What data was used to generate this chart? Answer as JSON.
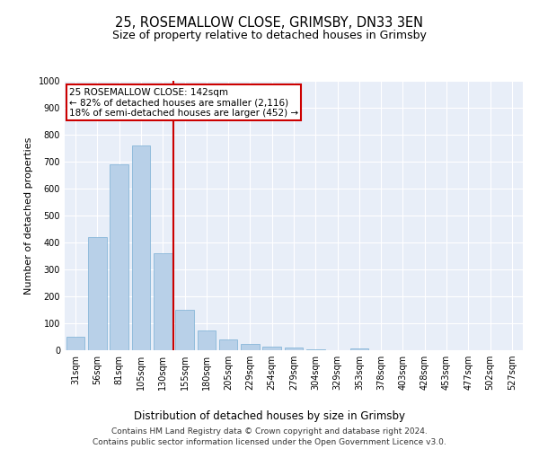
{
  "title": "25, ROSEMALLOW CLOSE, GRIMSBY, DN33 3EN",
  "subtitle": "Size of property relative to detached houses in Grimsby",
  "xlabel": "Distribution of detached houses by size in Grimsby",
  "ylabel": "Number of detached properties",
  "categories": [
    "31sqm",
    "56sqm",
    "81sqm",
    "105sqm",
    "130sqm",
    "155sqm",
    "180sqm",
    "205sqm",
    "229sqm",
    "254sqm",
    "279sqm",
    "304sqm",
    "329sqm",
    "353sqm",
    "378sqm",
    "403sqm",
    "428sqm",
    "453sqm",
    "477sqm",
    "502sqm",
    "527sqm"
  ],
  "values": [
    50,
    420,
    690,
    760,
    360,
    150,
    75,
    40,
    25,
    15,
    10,
    5,
    0,
    8,
    0,
    0,
    0,
    0,
    0,
    0,
    0
  ],
  "bar_color": "#b8d0e8",
  "bar_edge_color": "#7aafd4",
  "vline_color": "#cc0000",
  "annotation_text": "25 ROSEMALLOW CLOSE: 142sqm\n← 82% of detached houses are smaller (2,116)\n18% of semi-detached houses are larger (452) →",
  "annotation_box_color": "#ffffff",
  "annotation_box_edge_color": "#cc0000",
  "ylim": [
    0,
    1000
  ],
  "yticks": [
    0,
    100,
    200,
    300,
    400,
    500,
    600,
    700,
    800,
    900,
    1000
  ],
  "bg_color": "#e8eef8",
  "footnote_line1": "Contains HM Land Registry data © Crown copyright and database right 2024.",
  "footnote_line2": "Contains public sector information licensed under the Open Government Licence v3.0.",
  "title_fontsize": 10.5,
  "subtitle_fontsize": 9,
  "xlabel_fontsize": 8.5,
  "ylabel_fontsize": 8,
  "tick_fontsize": 7,
  "annotation_fontsize": 7.5,
  "footnote_fontsize": 6.5
}
